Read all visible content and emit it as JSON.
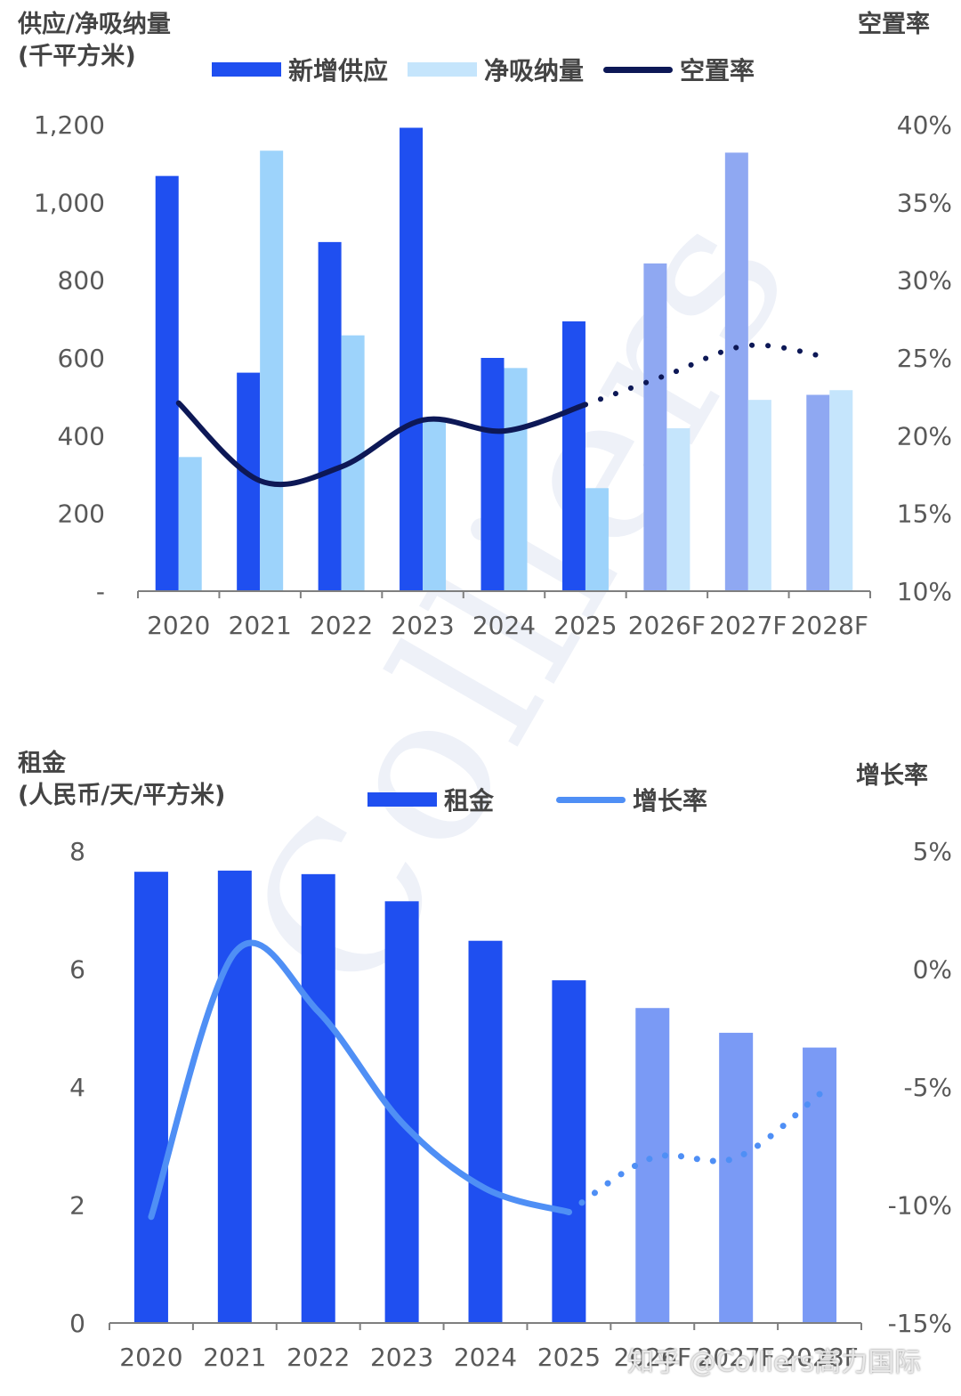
{
  "watermark_text": "Colliers",
  "credit_text": "知乎 @Colliers高力国际",
  "colors": {
    "supply": "#1f4ff0",
    "supply_forecast": "#8fa8f2",
    "absorption": "#9dd3fb",
    "absorption_forecast": "#c5e5fc",
    "vacancy": "#0d1856",
    "rent": "#1f4ff0",
    "rent_forecast": "#7a9af5",
    "growth": "#4f8ff5",
    "axis": "#7f7f7f"
  },
  "chart_data": [
    {
      "type": "bar",
      "title": "",
      "ylabel_lines": [
        "供应/净吸纳量",
        "(千平方米)"
      ],
      "y2label": "空置率",
      "categories": [
        "2020",
        "2021",
        "2022",
        "2023",
        "2024",
        "2025",
        "2026F",
        "2027F",
        "2028F"
      ],
      "forecast_from_index": 6,
      "ylim": [
        0,
        1200
      ],
      "yticks": [
        "-",
        "200",
        "400",
        "600",
        "800",
        "1,000",
        "1,200"
      ],
      "y2lim": [
        10,
        40
      ],
      "y2ticks": [
        "10%",
        "15%",
        "20%",
        "25%",
        "30%",
        "35%",
        "40%"
      ],
      "legend": [
        "新增供应",
        "净吸纳量",
        "空置率"
      ],
      "series": [
        {
          "name": "新增供应",
          "kind": "bar",
          "values": [
            1068,
            562,
            898,
            1192,
            600,
            694,
            843,
            1128,
            505
          ]
        },
        {
          "name": "净吸纳量",
          "kind": "bar",
          "values": [
            345,
            1133,
            658,
            440,
            574,
            265,
            419,
            492,
            517
          ]
        },
        {
          "name": "空置率",
          "kind": "line",
          "axis": "right",
          "values": [
            22.1,
            17.1,
            18.0,
            21.0,
            20.3,
            22.0,
            23.9,
            25.8,
            25.0
          ]
        }
      ]
    },
    {
      "type": "bar",
      "title": "",
      "ylabel_lines": [
        "租金",
        "(人民币/天/平方米)"
      ],
      "y2label": "增长率",
      "categories": [
        "2020",
        "2021",
        "2022",
        "2023",
        "2024",
        "2025",
        "2026F",
        "2027F",
        "2028F"
      ],
      "forecast_from_index": 6,
      "ylim": [
        0,
        8
      ],
      "yticks": [
        "0",
        "2",
        "4",
        "6",
        "8"
      ],
      "y2lim": [
        -15,
        5
      ],
      "y2ticks": [
        "-15%",
        "-10%",
        "-5%",
        "0%",
        "5%"
      ],
      "legend": [
        "租金",
        "增长率"
      ],
      "series": [
        {
          "name": "租金",
          "kind": "bar",
          "values": [
            7.65,
            7.67,
            7.61,
            7.15,
            6.48,
            5.81,
            5.34,
            4.92,
            4.67
          ]
        },
        {
          "name": "增长率",
          "kind": "line",
          "axis": "right",
          "values": [
            -10.5,
            0.7,
            -1.8,
            -6.5,
            -9.3,
            -10.3,
            -8.0,
            -8.0,
            -5.3
          ]
        }
      ]
    }
  ]
}
